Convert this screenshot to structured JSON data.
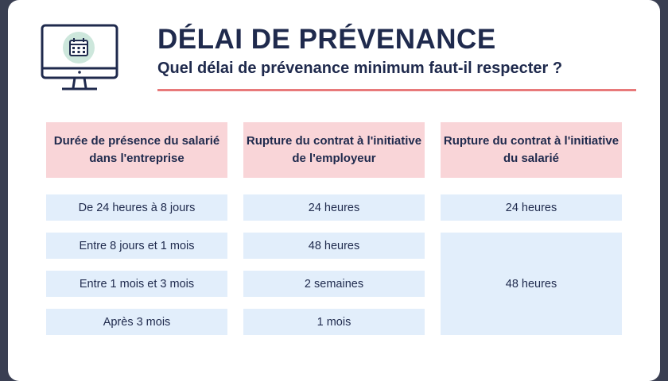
{
  "header": {
    "title": "DÉLAI DE PRÉVENANCE",
    "subtitle": "Quel délai de prévenance minimum faut-il respecter ?"
  },
  "table": {
    "columns": [
      "Durée de présence du salarié dans l'entreprise",
      "Rupture du contrat à l'initiative de l'employeur",
      "Rupture du contrat à l'initiative du salarié"
    ],
    "rows": [
      [
        "De 24 heures à 8 jours",
        "24 heures",
        "24 heures"
      ],
      [
        "Entre 8 jours et 1 mois",
        "48 heures",
        "48 heures"
      ],
      [
        "Entre 1 mois et 3 mois",
        "2 semaines"
      ],
      [
        "Après 3 mois",
        "1 mois"
      ]
    ]
  }
}
